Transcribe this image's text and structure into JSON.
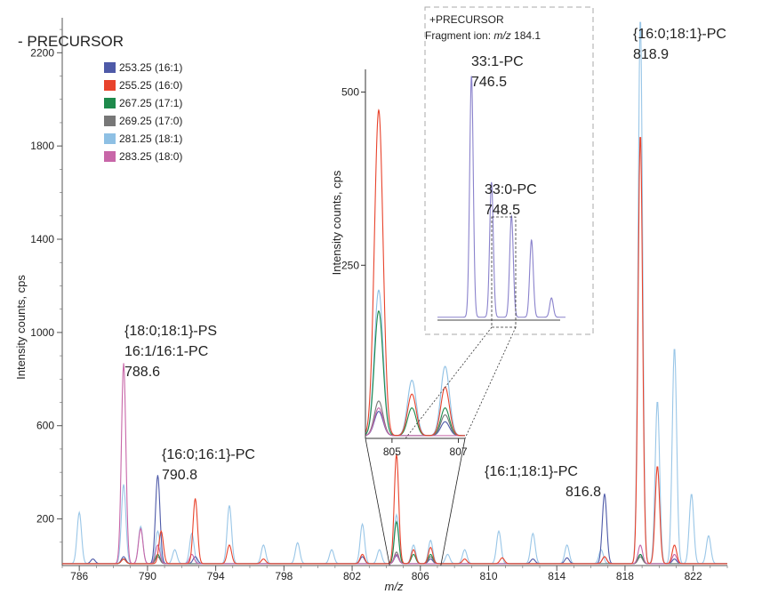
{
  "chart_data": {
    "type": "line",
    "title": "- PRECURSOR",
    "xlabel": "m/z",
    "ylabel": "Intensity counts, cps",
    "xlim": [
      785,
      824
    ],
    "ylim": [
      0,
      2350
    ],
    "x_ticks": [
      786,
      790,
      794,
      798,
      802,
      806,
      810,
      814,
      818,
      822
    ],
    "y_ticks": [
      200,
      600,
      1000,
      1400,
      1800,
      2200
    ],
    "legend_position": "top-left",
    "series": [
      {
        "name": "253.25 (16:1)",
        "color": "#4e5aa8",
        "peaks": [
          [
            786.8,
            20
          ],
          [
            788.6,
            30
          ],
          [
            790.6,
            380
          ],
          [
            792.8,
            30
          ],
          [
            802.6,
            30
          ],
          [
            804.6,
            35
          ],
          [
            806.6,
            20
          ],
          [
            812.6,
            20
          ],
          [
            814.6,
            25
          ],
          [
            816.8,
            300
          ],
          [
            818.9,
            40
          ],
          [
            820.9,
            20
          ]
        ]
      },
      {
        "name": "255.25 (16:0)",
        "color": "#e8432c",
        "peaks": [
          [
            788.6,
            20
          ],
          [
            790.8,
            140
          ],
          [
            792.8,
            280
          ],
          [
            794.8,
            80
          ],
          [
            796.8,
            20
          ],
          [
            802.6,
            40
          ],
          [
            804.6,
            470
          ],
          [
            805.6,
            60
          ],
          [
            806.6,
            70
          ],
          [
            808.6,
            20
          ],
          [
            810.8,
            25
          ],
          [
            816.8,
            30
          ],
          [
            818.9,
            1850
          ],
          [
            819.9,
            420
          ],
          [
            820.9,
            80
          ]
        ]
      },
      {
        "name": "267.25 (17:1)",
        "color": "#1e8a4c",
        "peaks": [
          [
            788.6,
            20
          ],
          [
            790.6,
            40
          ],
          [
            804.6,
            180
          ],
          [
            805.6,
            40
          ],
          [
            806.6,
            40
          ],
          [
            818.9,
            40
          ]
        ]
      },
      {
        "name": "269.25 (17:0)",
        "color": "#777777",
        "peaks": [
          [
            788.6,
            20
          ],
          [
            790.6,
            30
          ],
          [
            804.6,
            50
          ],
          [
            806.6,
            30
          ],
          [
            818.9,
            30
          ]
        ]
      },
      {
        "name": "281.25 (18:1)",
        "color": "#8ec0e4",
        "peaks": [
          [
            786.0,
            220
          ],
          [
            788.6,
            340
          ],
          [
            789.6,
            160
          ],
          [
            790.6,
            140
          ],
          [
            791.6,
            60
          ],
          [
            792.6,
            130
          ],
          [
            794.8,
            250
          ],
          [
            796.8,
            80
          ],
          [
            798.8,
            90
          ],
          [
            800.8,
            60
          ],
          [
            802.6,
            170
          ],
          [
            803.6,
            60
          ],
          [
            804.6,
            210
          ],
          [
            805.6,
            80
          ],
          [
            806.6,
            100
          ],
          [
            807.6,
            40
          ],
          [
            808.6,
            60
          ],
          [
            810.6,
            140
          ],
          [
            812.6,
            130
          ],
          [
            814.6,
            80
          ],
          [
            816.6,
            60
          ],
          [
            818.9,
            2350
          ],
          [
            819.9,
            700
          ],
          [
            820.9,
            930
          ],
          [
            821.9,
            300
          ],
          [
            822.9,
            120
          ]
        ]
      },
      {
        "name": "283.25 (18:0)",
        "color": "#c866a8",
        "peaks": [
          [
            788.6,
            860
          ],
          [
            789.6,
            150
          ],
          [
            790.6,
            80
          ],
          [
            792.6,
            40
          ],
          [
            804.6,
            40
          ],
          [
            816.8,
            30
          ],
          [
            818.9,
            80
          ],
          [
            820.9,
            40
          ]
        ]
      }
    ],
    "annotations": [
      {
        "lines": [
          "{18:0;18:1}-PS",
          "16:1/16:1-PC",
          "788.6"
        ]
      },
      {
        "lines": [
          "{16:0;16:1}-PC",
          "790.8"
        ]
      },
      {
        "lines": [
          "{16:1;18:1}-PC",
          "816.8"
        ]
      },
      {
        "lines": [
          "{16:0;18:1}-PC",
          "818.9"
        ]
      }
    ],
    "zoom_inset": {
      "xlim": [
        804.2,
        807.2
      ],
      "ylim": [
        0,
        520
      ],
      "x_ticks": [
        805,
        807
      ],
      "y_ticks": [
        250,
        500
      ],
      "ylabel": "Intensity counts, cps"
    },
    "precursor_inset": {
      "title": "+PRECURSOR",
      "subtitle_prefix": "Fragment ion: ",
      "subtitle_italic": "m/z",
      "subtitle_suffix": " 184.1",
      "color": "#8a82cc",
      "peaks": [
        [
          746.5,
          500
        ],
        [
          747.5,
          280
        ],
        [
          748.5,
          210
        ],
        [
          749.5,
          160
        ],
        [
          750.5,
          40
        ]
      ],
      "annotations": [
        {
          "lines": [
            "33:1-PC",
            "746.5"
          ]
        },
        {
          "lines": [
            "33:0-PC",
            "748.5"
          ]
        }
      ]
    }
  }
}
